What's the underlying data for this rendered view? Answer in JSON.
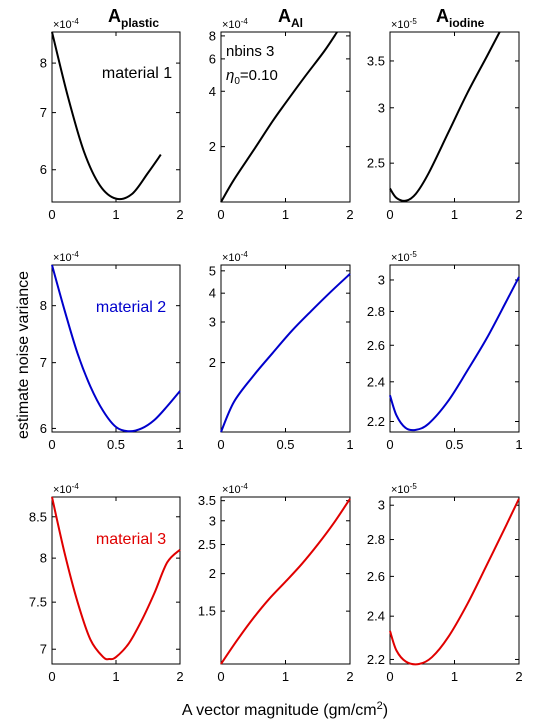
{
  "figure": {
    "xlabel": "A vector magnitude (gm/cm",
    "xlabel_sup": "2",
    "xlabel_end": ")",
    "ylabel": "estimate noise variance",
    "column_titles": [
      {
        "main": "A",
        "sub": "plastic"
      },
      {
        "main": "A",
        "sub": "Al"
      },
      {
        "main": "A",
        "sub": "iodine"
      }
    ],
    "annotation": {
      "line1": "nbins 3",
      "eta_symbol": "η",
      "eta_sub": "0",
      "eta_value": "=0.10"
    }
  },
  "chart_data": [
    {
      "type": "line",
      "row": 0,
      "col": 0,
      "title": "material 1",
      "scale": {
        "base": "×10",
        "exp": "-4"
      },
      "xlim": [
        0,
        2
      ],
      "ylim": [
        5.5,
        8.7
      ],
      "yscale": "log",
      "xticks": [
        "0",
        "1",
        "2"
      ],
      "yticks": [
        "6",
        "7",
        "8"
      ],
      "color": "#000000",
      "x": [
        0,
        0.25,
        0.5,
        0.75,
        1.0,
        1.25,
        1.5,
        1.7
      ],
      "y": [
        8.7,
        7.3,
        6.3,
        5.75,
        5.55,
        5.62,
        5.95,
        6.25
      ]
    },
    {
      "type": "line",
      "row": 0,
      "col": 1,
      "xlim": [
        0,
        2
      ],
      "ylim": [
        1.0,
        8.4
      ],
      "yscale": "log",
      "xticks": [
        "0",
        "1",
        "2"
      ],
      "yticks": [
        "2",
        "4",
        "6",
        "8"
      ],
      "scale": {
        "base": "×10",
        "exp": "-4"
      },
      "color": "#000000",
      "x": [
        0,
        0.2,
        0.5,
        0.8,
        1.0,
        1.3,
        1.6,
        1.8
      ],
      "y": [
        1.0,
        1.32,
        1.9,
        2.75,
        3.45,
        4.8,
        6.6,
        8.4
      ]
    },
    {
      "type": "line",
      "row": 0,
      "col": 2,
      "xlim": [
        0,
        2
      ],
      "ylim": [
        2.2,
        3.85
      ],
      "yscale": "log",
      "xticks": [
        "0",
        "1",
        "2"
      ],
      "yticks": [
        "2.5",
        "3",
        "3.5"
      ],
      "scale": {
        "base": "×10",
        "exp": "-5"
      },
      "color": "#000000",
      "x": [
        0,
        0.1,
        0.25,
        0.4,
        0.6,
        0.9,
        1.2,
        1.5,
        1.7
      ],
      "y": [
        2.3,
        2.23,
        2.21,
        2.26,
        2.42,
        2.76,
        3.15,
        3.55,
        3.85
      ]
    },
    {
      "type": "line",
      "row": 1,
      "col": 0,
      "title": "material 2",
      "scale": {
        "base": "×10",
        "exp": "-4"
      },
      "xlim": [
        0,
        1
      ],
      "ylim": [
        5.95,
        8.8
      ],
      "yscale": "log",
      "xticks": [
        "0",
        "0.5",
        "1"
      ],
      "yticks": [
        "6",
        "7",
        "8"
      ],
      "color": "#0000cc",
      "x": [
        0,
        0.1,
        0.2,
        0.3,
        0.4,
        0.5,
        0.6,
        0.7,
        0.8,
        0.9,
        1.0
      ],
      "y": [
        8.8,
        7.9,
        7.15,
        6.62,
        6.25,
        6.02,
        5.96,
        6.0,
        6.12,
        6.32,
        6.55
      ]
    },
    {
      "type": "line",
      "row": 1,
      "col": 1,
      "xlim": [
        0,
        1
      ],
      "ylim": [
        1.0,
        5.3
      ],
      "yscale": "log",
      "xticks": [
        "0",
        "0.5",
        "1"
      ],
      "yticks": [
        "2",
        "3",
        "4",
        "5"
      ],
      "scale": {
        "base": "×10",
        "exp": "-4"
      },
      "color": "#0000cc",
      "x": [
        0,
        0.1,
        0.25,
        0.4,
        0.55,
        0.7,
        0.85,
        1.0
      ],
      "y": [
        1.0,
        1.35,
        1.75,
        2.2,
        2.75,
        3.35,
        4.05,
        4.85
      ]
    },
    {
      "type": "line",
      "row": 1,
      "col": 2,
      "xlim": [
        0,
        1
      ],
      "ylim": [
        2.15,
        3.1
      ],
      "yscale": "log",
      "xticks": [
        "0",
        "0.5",
        "1"
      ],
      "yticks": [
        "2.2",
        "2.4",
        "2.6",
        "2.8",
        "3"
      ],
      "scale": {
        "base": "×10",
        "exp": "-5"
      },
      "color": "#0000cc",
      "x": [
        0,
        0.05,
        0.12,
        0.2,
        0.3,
        0.45,
        0.6,
        0.75,
        0.9,
        1.0
      ],
      "y": [
        2.33,
        2.23,
        2.17,
        2.16,
        2.19,
        2.3,
        2.46,
        2.64,
        2.86,
        3.02
      ]
    },
    {
      "type": "line",
      "row": 2,
      "col": 0,
      "title": "material 3",
      "scale": {
        "base": "×10",
        "exp": "-4"
      },
      "xlim": [
        0,
        2
      ],
      "ylim": [
        6.85,
        8.75
      ],
      "yscale": "log",
      "xticks": [
        "0",
        "1",
        "2"
      ],
      "yticks": [
        "7",
        "7.5",
        "8",
        "8.5"
      ],
      "color": "#e00000",
      "x": [
        0,
        0.2,
        0.4,
        0.6,
        0.8,
        0.9,
        1.0,
        1.2,
        1.4,
        1.6,
        1.8,
        2.0
      ],
      "y": [
        8.75,
        8.05,
        7.5,
        7.1,
        6.92,
        6.9,
        6.92,
        7.06,
        7.3,
        7.6,
        7.95,
        8.1
      ]
    },
    {
      "type": "line",
      "row": 2,
      "col": 1,
      "xlim": [
        0,
        2
      ],
      "ylim": [
        1.0,
        3.6
      ],
      "yscale": "log",
      "xticks": [
        "0",
        "1",
        "2"
      ],
      "yticks": [
        "1.5",
        "2",
        "2.5",
        "3",
        "3.5"
      ],
      "scale": {
        "base": "×10",
        "exp": "-4"
      },
      "color": "#e00000",
      "x": [
        0,
        0.25,
        0.5,
        0.75,
        1.0,
        1.25,
        1.5,
        1.75,
        2.0
      ],
      "y": [
        1.0,
        1.2,
        1.42,
        1.65,
        1.88,
        2.15,
        2.5,
        2.95,
        3.55
      ]
    },
    {
      "type": "line",
      "row": 2,
      "col": 2,
      "xlim": [
        0,
        2
      ],
      "ylim": [
        2.18,
        3.05
      ],
      "yscale": "log",
      "xticks": [
        "0",
        "1",
        "2"
      ],
      "yticks": [
        "2.2",
        "2.4",
        "2.6",
        "2.8",
        "3"
      ],
      "scale": {
        "base": "×10",
        "exp": "-5"
      },
      "color": "#e00000",
      "x": [
        0,
        0.1,
        0.25,
        0.45,
        0.65,
        0.9,
        1.2,
        1.5,
        1.8,
        2.0
      ],
      "y": [
        2.33,
        2.24,
        2.19,
        2.18,
        2.21,
        2.3,
        2.46,
        2.66,
        2.88,
        3.04
      ]
    }
  ]
}
